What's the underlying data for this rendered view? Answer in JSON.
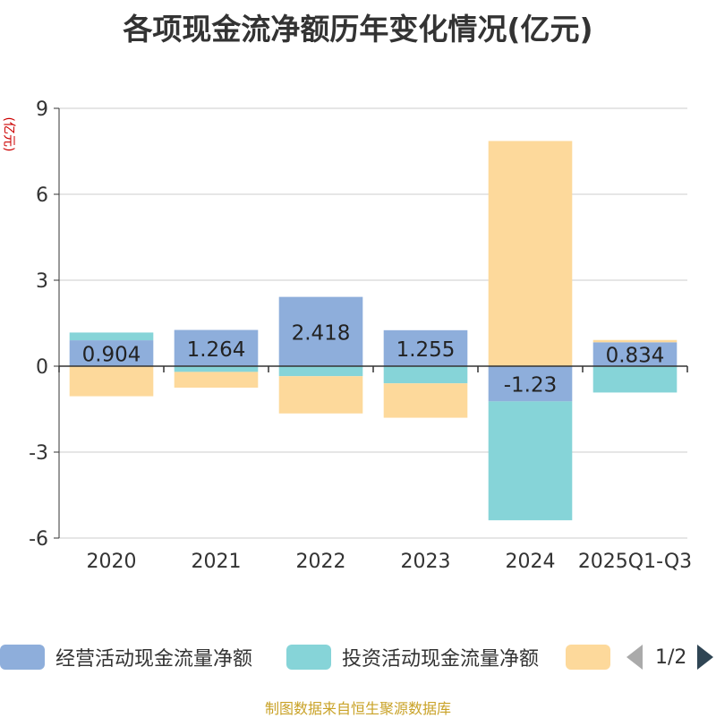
{
  "chart_data": {
    "type": "bar",
    "stacked": true,
    "title": "各项现金流净额历年变化情况(亿元)",
    "ylabel": "(亿元)",
    "ylim": [
      -6,
      9
    ],
    "yticks": [
      -6,
      -3,
      0,
      3,
      6,
      9
    ],
    "categories": [
      "2020",
      "2021",
      "2022",
      "2023",
      "2024",
      "2025Q1-Q3"
    ],
    "series": [
      {
        "name": "经营活动现金流量净额",
        "color": "#8eaedb",
        "values": [
          0.904,
          1.264,
          2.418,
          1.255,
          -1.23,
          0.834
        ],
        "labels": [
          "0.904",
          "1.264",
          "2.418",
          "1.255",
          "-1.23",
          "0.834"
        ]
      },
      {
        "name": "投资活动现金流量净额",
        "color": "#86d4d8",
        "values": [
          0.27,
          -0.2,
          -0.35,
          -0.6,
          -4.15,
          -0.92
        ]
      },
      {
        "name": "",
        "color": "#fdd99b",
        "values": [
          -1.05,
          -0.55,
          -1.3,
          -1.2,
          7.86,
          0.08
        ]
      }
    ]
  },
  "legend": {
    "items": [
      {
        "label": "经营活动现金流量净额",
        "color": "#8eaedb"
      },
      {
        "label": "投资活动现金流量净额",
        "color": "#86d4d8"
      },
      {
        "label": "",
        "color": "#fdd99b"
      }
    ],
    "page_text": "1/2"
  },
  "source": "制图数据来自恒生聚源数据库"
}
